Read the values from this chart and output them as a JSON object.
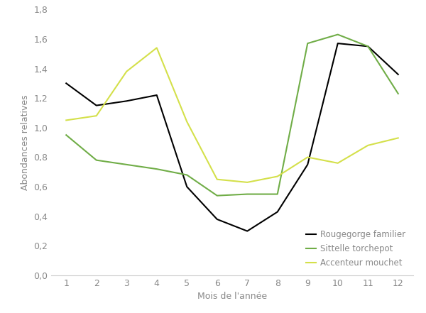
{
  "months": [
    1,
    2,
    3,
    4,
    5,
    6,
    7,
    8,
    9,
    10,
    11,
    12
  ],
  "rougegorge": [
    1.3,
    1.15,
    1.18,
    1.22,
    0.6,
    0.38,
    0.3,
    0.43,
    0.75,
    1.57,
    1.55,
    1.36
  ],
  "sittelle": [
    0.95,
    0.78,
    0.75,
    0.72,
    0.68,
    0.54,
    0.55,
    0.55,
    1.57,
    1.63,
    1.55,
    1.23
  ],
  "accenteur": [
    1.05,
    1.08,
    1.38,
    1.54,
    1.04,
    0.65,
    0.63,
    0.67,
    0.8,
    0.76,
    0.88,
    0.93
  ],
  "rougegorge_color": "#000000",
  "sittelle_color": "#70ad47",
  "accenteur_color": "#d4e04a",
  "xlabel": "Mois de l'année",
  "ylabel": "Abondances relatives",
  "ylim": [
    0.0,
    1.8
  ],
  "yticks": [
    0.0,
    0.2,
    0.4,
    0.6,
    0.8,
    1.0,
    1.2,
    1.4,
    1.6,
    1.8
  ],
  "xticks": [
    1,
    2,
    3,
    4,
    5,
    6,
    7,
    8,
    9,
    10,
    11,
    12
  ],
  "legend_labels": [
    "Rougegorge familier",
    "Sittelle torchepot",
    "Accenteur mouchet"
  ],
  "line_width": 1.5,
  "figsize": [
    6.0,
    4.41
  ],
  "dpi": 100,
  "label_color": "#888888",
  "tick_color": "#888888",
  "spine_color": "#cccccc"
}
